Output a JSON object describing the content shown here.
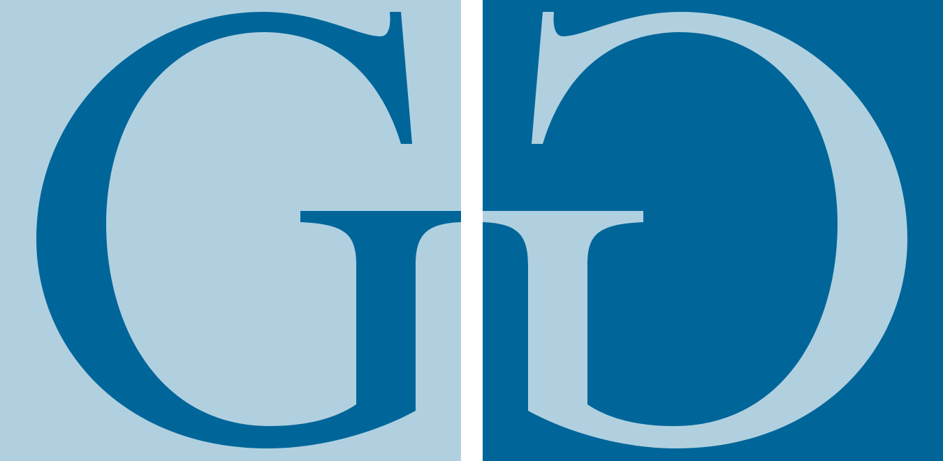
{
  "logo": {
    "text": "G",
    "colors": {
      "light": "#b0d0e0",
      "dark": "#006699",
      "gap": "#ffffff"
    },
    "panels": [
      {
        "name": "left-panel",
        "background": "light",
        "glyph": "dark",
        "mirrored": false
      },
      {
        "name": "right-panel",
        "background": "dark",
        "glyph": "light",
        "mirrored": true
      }
    ]
  }
}
